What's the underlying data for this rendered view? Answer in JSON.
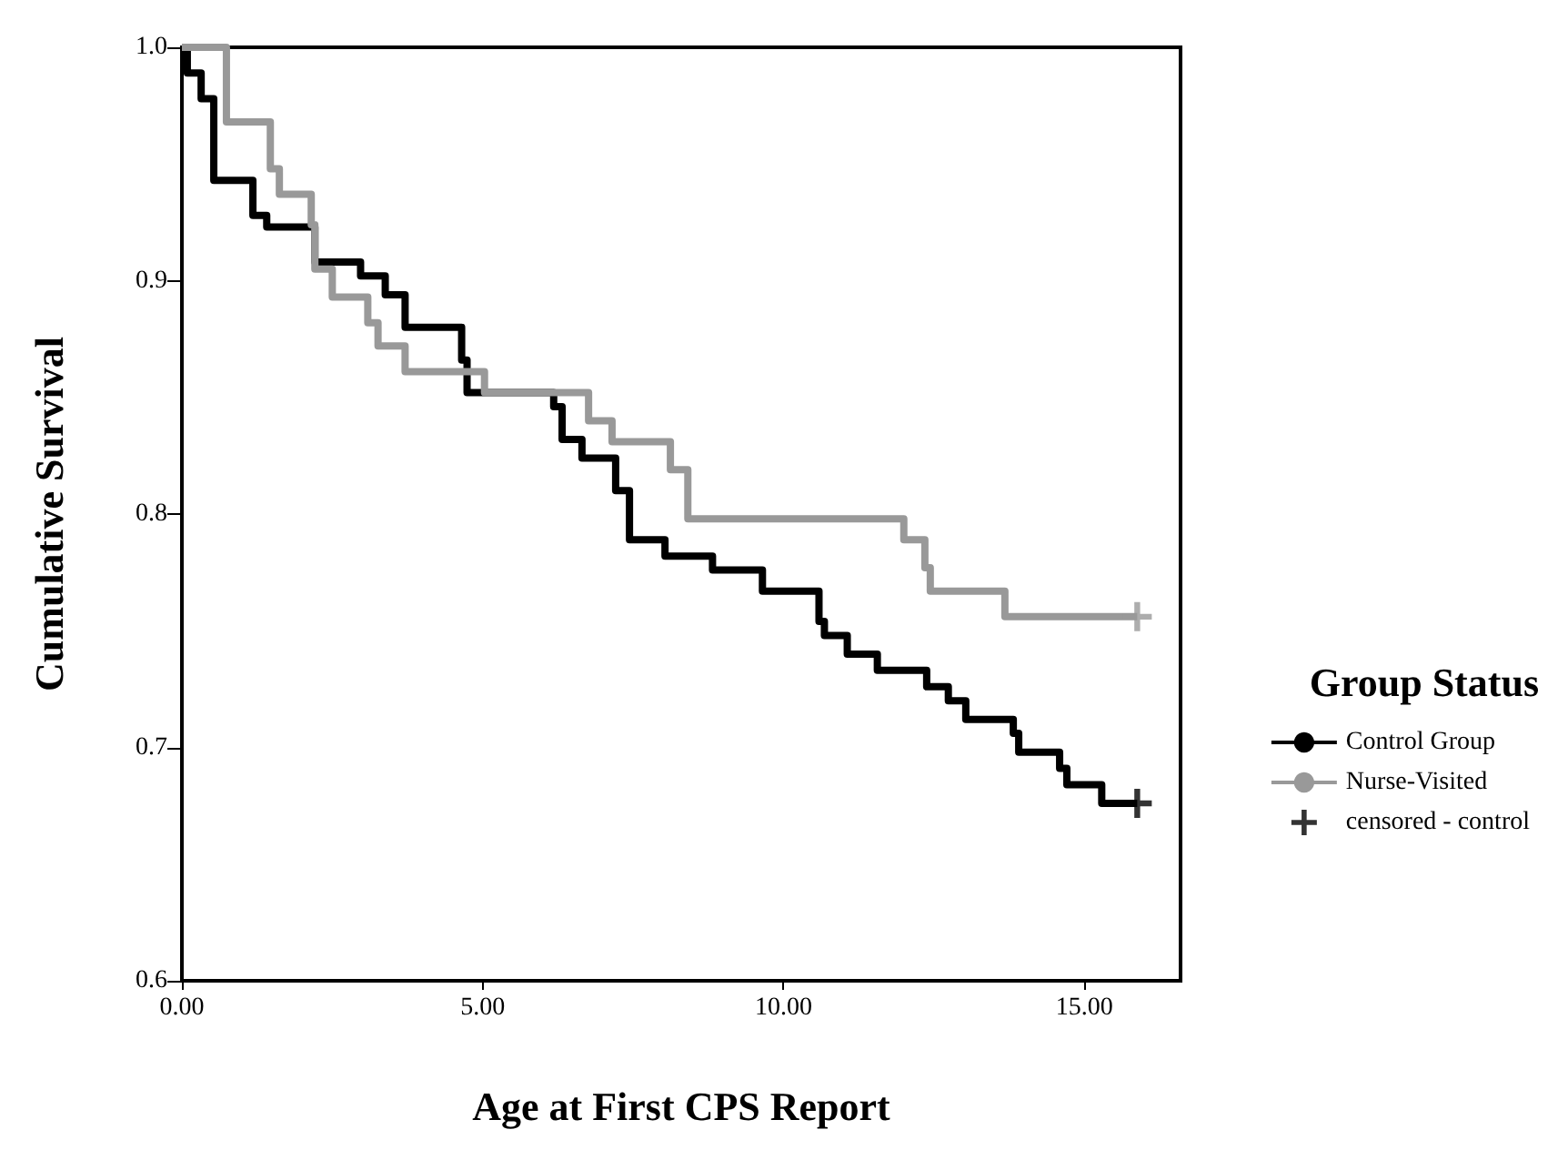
{
  "chart_data": {
    "type": "step",
    "xlabel": "Age at First CPS Report",
    "ylabel": "Cumulative Survival",
    "legend_title": "Group Status",
    "legend": "right",
    "grid": false,
    "xlim": [
      0,
      16.6
    ],
    "ylim": [
      0.6,
      1.0
    ],
    "xticks": [
      {
        "value": 0,
        "label": "0.00"
      },
      {
        "value": 5,
        "label": "5.00"
      },
      {
        "value": 10,
        "label": "10.00"
      },
      {
        "value": 15,
        "label": "15.00"
      }
    ],
    "yticks": [
      {
        "value": 0.6,
        "label": "0.6"
      },
      {
        "value": 0.7,
        "label": "0.7"
      },
      {
        "value": 0.8,
        "label": "0.8"
      },
      {
        "value": 0.9,
        "label": "0.9"
      },
      {
        "value": 1.0,
        "label": "1.0"
      }
    ],
    "series": [
      {
        "name": "Control Group",
        "color": "#000000",
        "x": [
          0,
          0.09,
          0.32,
          0.53,
          1.18,
          1.41,
          2.21,
          2.97,
          3.38,
          3.71,
          4.65,
          4.74,
          6.18,
          6.32,
          6.65,
          7.21,
          7.44,
          8.03,
          8.82,
          9.65,
          10.59,
          10.68,
          11.06,
          11.56,
          12.38,
          12.74,
          13.03,
          13.82,
          13.91,
          14.59,
          14.71,
          15.29,
          15.88
        ],
        "values": [
          1.0,
          0.989,
          0.978,
          0.943,
          0.928,
          0.923,
          0.908,
          0.902,
          0.894,
          0.88,
          0.866,
          0.852,
          0.846,
          0.832,
          0.824,
          0.81,
          0.789,
          0.782,
          0.776,
          0.767,
          0.754,
          0.748,
          0.74,
          0.733,
          0.726,
          0.72,
          0.712,
          0.706,
          0.698,
          0.691,
          0.684,
          0.676,
          0.676
        ]
      },
      {
        "name": "Nurse-Visited",
        "color": "#999999",
        "x": [
          0,
          0.74,
          1.47,
          1.62,
          2.15,
          2.21,
          2.5,
          3.09,
          3.26,
          3.71,
          5.03,
          6.76,
          7.15,
          8.12,
          8.41,
          12.0,
          12.35,
          12.44,
          13.68,
          15.88
        ],
        "values": [
          1.0,
          0.968,
          0.948,
          0.937,
          0.924,
          0.905,
          0.893,
          0.882,
          0.872,
          0.861,
          0.852,
          0.84,
          0.831,
          0.819,
          0.798,
          0.789,
          0.777,
          0.767,
          0.756,
          0.756
        ]
      },
      {
        "name": "censored - control",
        "type": "scatter",
        "marker": "cross",
        "color": "#000000",
        "x": [
          15.88
        ],
        "values": [
          0.676
        ]
      },
      {
        "type": "scatter",
        "marker": "cross",
        "color": "#999999",
        "x": [
          15.88
        ],
        "values": [
          0.756
        ]
      }
    ]
  }
}
